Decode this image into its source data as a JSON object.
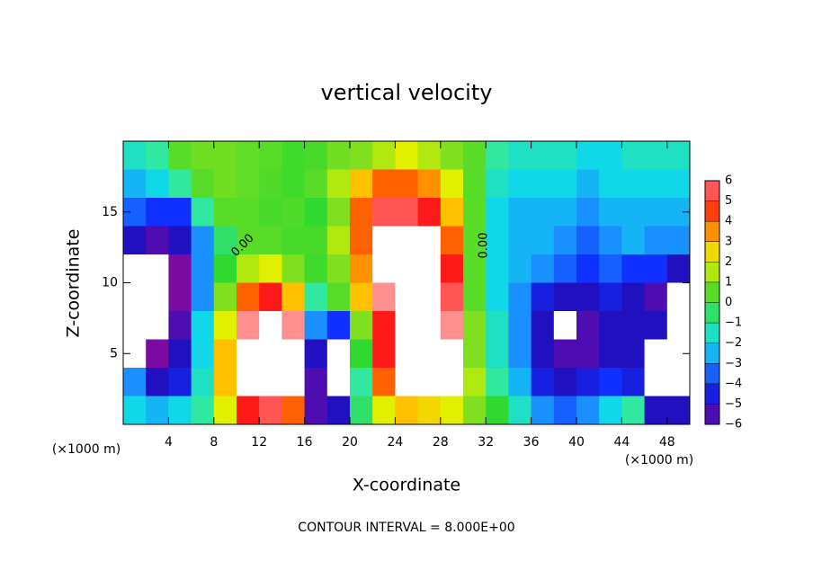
{
  "chart_data": {
    "type": "heatmap",
    "title": "vertical velocity",
    "xlabel": "X-coordinate",
    "ylabel": "Z-coordinate",
    "x_unit": "(×1000 m)",
    "footer": "CONTOUR INTERVAL = 8.000E+00",
    "contour_labels": [
      "0.00",
      "0.00"
    ],
    "x": [
      1,
      3,
      5,
      7,
      9,
      11,
      13,
      15,
      17,
      19,
      21,
      23,
      25,
      27,
      29,
      31,
      33,
      35,
      37,
      39,
      41,
      43,
      45,
      47,
      49
    ],
    "z": [
      19,
      17,
      15,
      13,
      11,
      9,
      7,
      5,
      3,
      1
    ],
    "values": [
      [
        -1.5,
        -1,
        0.5,
        0.8,
        0.8,
        0.6,
        0.5,
        0.2,
        0.3,
        0.8,
        1,
        1.5,
        2,
        1.5,
        1,
        0.5,
        -1,
        -1.5,
        -1.5,
        -1.5,
        -2,
        -2,
        -1.5,
        -1.5,
        -1.5
      ],
      [
        -2.5,
        -2,
        -1,
        0.5,
        0.8,
        0.6,
        0.4,
        0.2,
        0.5,
        1.5,
        3,
        4,
        4,
        3.5,
        2,
        0.5,
        -1.5,
        -2,
        -2,
        -2,
        -2.5,
        -2,
        -2,
        -2,
        -2
      ],
      [
        -3.5,
        -4,
        -4,
        -1,
        0.5,
        0.5,
        0.3,
        0.4,
        0,
        1,
        4,
        5.5,
        5.5,
        5,
        3,
        0.5,
        -2,
        -2.5,
        -2.5,
        -2.5,
        -3,
        -2.5,
        -2.5,
        -2.5,
        -2.5
      ],
      [
        -5,
        -5.5,
        -5,
        -3,
        -0.5,
        0.5,
        0.5,
        0.3,
        0.3,
        1.5,
        4,
        8,
        8,
        8,
        4,
        0.5,
        -2,
        -2.5,
        -2.5,
        -3,
        -3.5,
        -3,
        -2.5,
        -3,
        -3
      ],
      [
        -8,
        -8,
        -6,
        -3,
        0,
        1.5,
        2,
        1,
        0.2,
        1,
        3.5,
        7,
        8,
        8,
        5,
        0.5,
        -2,
        -2.5,
        -3,
        -3.5,
        -4,
        -3.5,
        -4,
        -4,
        -5
      ],
      [
        -8,
        -8,
        -6,
        -3,
        1,
        4,
        5,
        3,
        -1,
        0.5,
        3,
        6,
        8,
        8,
        5.5,
        0.5,
        -2,
        -3,
        -4.5,
        -5,
        -5,
        -4.5,
        -5,
        -5.5,
        -8
      ],
      [
        -8,
        -8,
        -5.5,
        -2,
        2,
        6,
        8,
        6,
        -3,
        -4,
        1,
        5,
        8,
        8,
        6,
        1,
        -1.5,
        -3,
        -5,
        -8,
        -5.5,
        -5,
        -5,
        -5,
        -8
      ],
      [
        -8,
        -6,
        -5,
        -2,
        3,
        7,
        8,
        7,
        -5,
        -8,
        0,
        5,
        8,
        8,
        6.5,
        1,
        -1.5,
        -3,
        -5,
        -5.5,
        -5.5,
        -5,
        -5,
        -8,
        -8
      ],
      [
        -3,
        -5,
        -4.5,
        -1.5,
        3,
        8,
        8,
        7,
        -5.5,
        -8,
        -1,
        4,
        8,
        8,
        7,
        1.5,
        -1,
        -2.5,
        -4.5,
        -5,
        -4.5,
        -4,
        -4.5,
        -8,
        -8
      ],
      [
        -2,
        -2.5,
        -2,
        -1,
        2,
        5,
        5.5,
        4,
        -5.5,
        -5,
        -0.5,
        2,
        3,
        2.5,
        2,
        1,
        0,
        -1.5,
        -3,
        -3.5,
        -3,
        -2,
        -1,
        -5,
        -5
      ]
    ],
    "xlim": [
      0,
      50
    ],
    "ylim": [
      0,
      20
    ],
    "xticks": [
      4,
      8,
      12,
      16,
      20,
      24,
      28,
      32,
      36,
      40,
      44,
      48
    ],
    "yticks": [
      5,
      10,
      15
    ],
    "colorbar_ticks": [
      {
        "value": -6,
        "label": "−6"
      },
      {
        "value": -5,
        "label": "−5"
      },
      {
        "value": -4,
        "label": "−4"
      },
      {
        "value": -3,
        "label": "−3"
      },
      {
        "value": -2,
        "label": "−2"
      },
      {
        "value": -1,
        "label": "−1"
      },
      0,
      1,
      2,
      3,
      4,
      5,
      6
    ],
    "colors": [
      "#7a0aa0",
      "#2010c0",
      "#1030ff",
      "#1a90ff",
      "#10d8e8",
      "#30e8a0",
      "#30d830",
      "#80e020",
      "#e0f000",
      "#ffc000",
      "#ff6000",
      "#ff1a1a",
      "#ff9090"
    ],
    "out_of_range_color": "#ffffff"
  }
}
